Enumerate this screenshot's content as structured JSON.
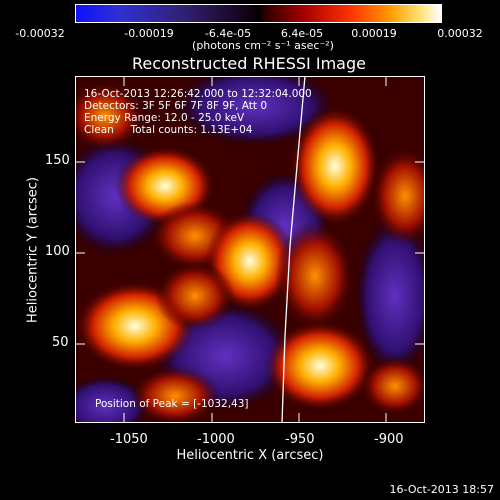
{
  "colorbar": {
    "ticks": [
      "-0.00032",
      "-0.00019",
      "-6.4e-05",
      "6.4e-05",
      "0.00019",
      "0.00032"
    ],
    "units": "(photons cm⁻² s⁻¹ asec⁻²)"
  },
  "title": "Reconstructed RHESSI Image",
  "info": {
    "line1": "16-Oct-2013 12:26:42.000 to 12:32:04.000",
    "line2": "Detectors: 3F 5F 6F 7F 8F 9F, Att 0",
    "line3": "Energy Range: 12.0 - 25.0 keV",
    "line4": "Clean     Total counts: 1.13E+04",
    "peak": "Position of Peak = [-1032,43]"
  },
  "axes": {
    "xlabel": "Heliocentric X (arcsec)",
    "ylabel": "Heliocentric Y (arcsec)",
    "xticks": [
      "-1050",
      "-1000",
      "-950",
      "-900"
    ],
    "yticks": [
      "50",
      "100",
      "150"
    ]
  },
  "footer": "16-Oct-2013 18:57"
}
